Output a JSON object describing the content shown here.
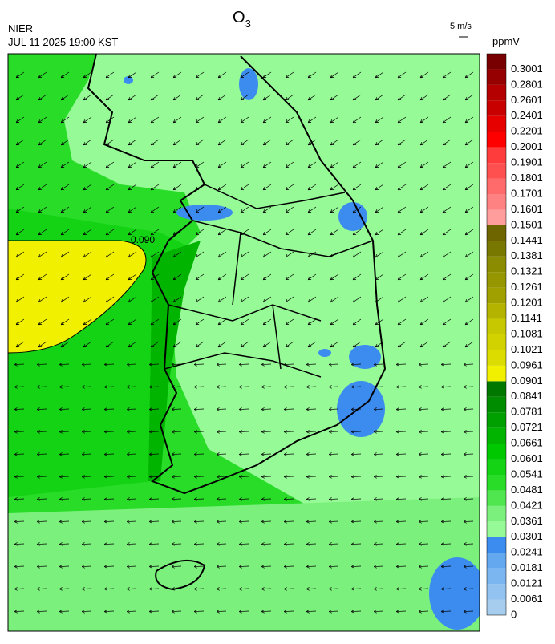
{
  "header": {
    "title": "O",
    "title_sub": "3",
    "agency": "NIER",
    "timestamp": "JUL 11 2025 19:00 KST",
    "wind_scale": "5 m/s",
    "unit": "ppmV"
  },
  "map": {
    "contour_label": "0.090"
  },
  "colorbar": {
    "levels": [
      0,
      0.0061,
      0.0121,
      0.0181,
      0.0241,
      0.0301,
      0.0361,
      0.0421,
      0.0481,
      0.0541,
      0.0601,
      0.0661,
      0.0721,
      0.0781,
      0.0841,
      0.0901,
      0.0961,
      0.1021,
      0.1081,
      0.1141,
      0.1201,
      0.1261,
      0.1321,
      0.1381,
      0.1441,
      0.1501,
      0.1601,
      0.1701,
      0.1801,
      0.1901,
      0.2001,
      0.2201,
      0.2401,
      0.2601,
      0.2801,
      0.3001
    ],
    "colors": [
      "#a6cdee",
      "#92c2ef",
      "#7cb6f0",
      "#64a8f0",
      "#3c8cf0",
      "#96fa96",
      "#7cf07c",
      "#50e650",
      "#28dc28",
      "#14d214",
      "#00c800",
      "#00b400",
      "#00a000",
      "#008c00",
      "#007800",
      "#f0f000",
      "#dcdc00",
      "#d2d200",
      "#c8c800",
      "#b4b400",
      "#a0a000",
      "#969600",
      "#8c8c00",
      "#787800",
      "#6e6400",
      "#ff9c9c",
      "#ff8282",
      "#ff6a6a",
      "#ff5050",
      "#ff3c3c",
      "#ff0000",
      "#e60000",
      "#c80000",
      "#b40000",
      "#960000",
      "#780000"
    ]
  }
}
